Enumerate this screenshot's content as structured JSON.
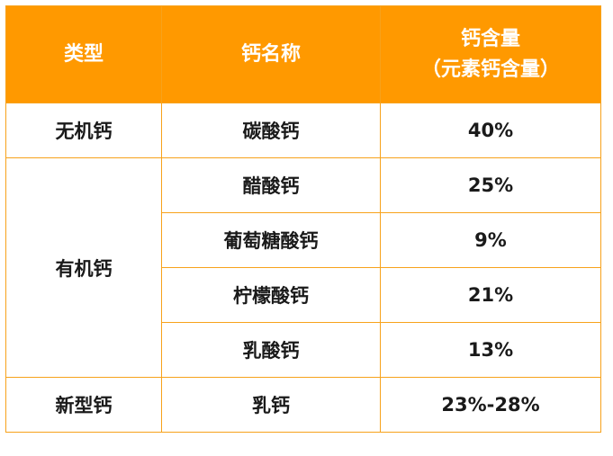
{
  "header": {
    "col_type": "类型",
    "col_name": "钙名称",
    "col_content_line1": "钙含量",
    "col_content_line2": "（元素钙含量）"
  },
  "groups": {
    "inorganic": {
      "type": "无机钙",
      "rows": [
        {
          "name": "碳酸钙",
          "content": "40%"
        }
      ]
    },
    "organic": {
      "type": "有机钙",
      "rows": [
        {
          "name": "醋酸钙",
          "content": "25%"
        },
        {
          "name": "葡萄糖酸钙",
          "content": "9%"
        },
        {
          "name": "柠檬酸钙",
          "content": "21%"
        },
        {
          "name": "乳酸钙",
          "content": "13%"
        }
      ]
    },
    "new": {
      "type": "新型钙",
      "rows": [
        {
          "name": "乳钙",
          "content": "23%-28%"
        }
      ]
    }
  },
  "colors": {
    "header_bg": "#ff9900",
    "border": "#f7a21b",
    "header_text": "#ffffff",
    "body_text": "#1a1a1a"
  }
}
